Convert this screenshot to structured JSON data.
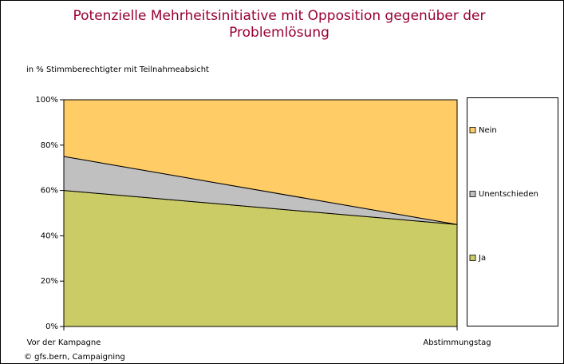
{
  "chart_data": {
    "type": "stacked_area",
    "title": "Potenzielle Mehrheitsinitiative mit Opposition gegenüber der Problemlösung",
    "subtitle": "in %  Stimmberechtigter mit Teilnahmeabsicht",
    "source": "© gfs.bern, Campaigning",
    "categories": [
      "Vor der Kampagne",
      "Abstimmungstag"
    ],
    "series": [
      {
        "name": "Ja",
        "color": "#cccc66",
        "values": [
          60,
          45
        ]
      },
      {
        "name": "Unentschieden",
        "color": "#c0c0c0",
        "values": [
          15,
          0
        ]
      },
      {
        "name": "Nein",
        "color": "#ffcc66",
        "values": [
          25,
          55
        ]
      }
    ],
    "ylim": [
      0,
      100
    ],
    "yticks": [
      {
        "value": 0,
        "label": "0%"
      },
      {
        "value": 20,
        "label": "20%"
      },
      {
        "value": 40,
        "label": "40%"
      },
      {
        "value": 60,
        "label": "60%"
      },
      {
        "value": 80,
        "label": "80%"
      },
      {
        "value": 100,
        "label": "100%"
      }
    ],
    "legend": "right"
  }
}
